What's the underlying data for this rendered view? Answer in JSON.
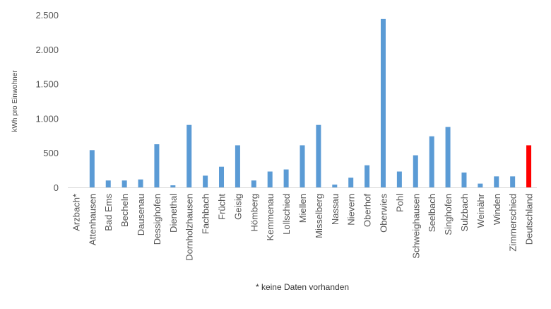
{
  "chart_data": {
    "type": "bar",
    "title": "",
    "xlabel": "",
    "ylabel": "kWh pro Einwohner",
    "ylim": [
      0,
      2500
    ],
    "yticks": [
      0,
      500,
      1000,
      1500,
      2000,
      2500
    ],
    "ytick_labels": [
      "0",
      "500",
      "1.000",
      "1.500",
      "2.000",
      "2.500"
    ],
    "grid": false,
    "categories": [
      "Arzbach*",
      "Attenhausen",
      "Bad Ems",
      "Becheln",
      "Dausenau",
      "Dessighofen",
      "Dienethal",
      "Dornholzhausen",
      "Fachbach",
      "Frücht",
      "Geisig",
      "Hömberg",
      "Kemmenau",
      "Lollschied",
      "Miellen",
      "Misselberg",
      "Nassau",
      "Nievern",
      "Oberhof",
      "Oberwies",
      "Pohl",
      "Schweighausen",
      "Seelbach",
      "Singhofen",
      "Sulzbach",
      "Weinähr",
      "Winden",
      "Zimmerschied",
      "Deutschland"
    ],
    "values": [
      0,
      540,
      100,
      100,
      115,
      625,
      30,
      905,
      170,
      300,
      610,
      100,
      230,
      260,
      610,
      905,
      40,
      140,
      320,
      2440,
      230,
      465,
      740,
      875,
      215,
      55,
      160,
      160,
      610
    ],
    "colors": {
      "default": "#5b9bd5",
      "highlight": "#ff0000",
      "highlight_category": "Deutschland"
    },
    "annotations": [
      "* keine Daten vorhanden"
    ]
  }
}
